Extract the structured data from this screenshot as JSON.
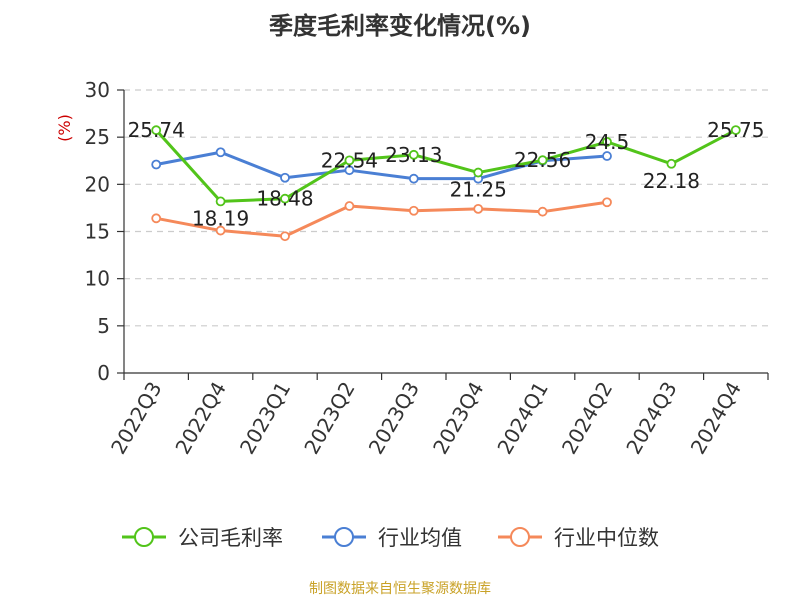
{
  "title": "季度毛利率变化情况(%)",
  "source": "制图数据来自恒生聚源数据库",
  "chart_data": {
    "type": "line",
    "ylabel": "(%)",
    "ylim": [
      0,
      30
    ],
    "yticks": [
      "0",
      "5",
      "10",
      "15",
      "20",
      "25",
      "30"
    ],
    "categories": [
      "2022Q3",
      "2022Q4",
      "2023Q1",
      "2023Q2",
      "2023Q3",
      "2023Q4",
      "2024Q1",
      "2024Q2",
      "2024Q3",
      "2024Q4"
    ],
    "grid": true,
    "legend_position": "bottom",
    "series": [
      {
        "name": "公司毛利率",
        "color": "#52c41a",
        "values": [
          25.74,
          18.19,
          18.48,
          22.54,
          23.13,
          21.25,
          22.56,
          24.5,
          22.18,
          25.75
        ],
        "labels": [
          "25.74",
          "18.19",
          "18.48",
          "22.54",
          "23.13",
          "21.25",
          "22.56",
          "24.5",
          "22.18",
          "25.75"
        ]
      },
      {
        "name": "行业均值",
        "color": "#4a7fd4",
        "values": [
          22.1,
          23.4,
          20.7,
          21.5,
          20.6,
          20.6,
          22.5,
          23.0,
          null,
          null
        ]
      },
      {
        "name": "行业中位数",
        "color": "#f5895a",
        "values": [
          16.4,
          15.1,
          14.5,
          17.7,
          17.2,
          17.4,
          17.1,
          18.1,
          null,
          null
        ]
      }
    ]
  }
}
